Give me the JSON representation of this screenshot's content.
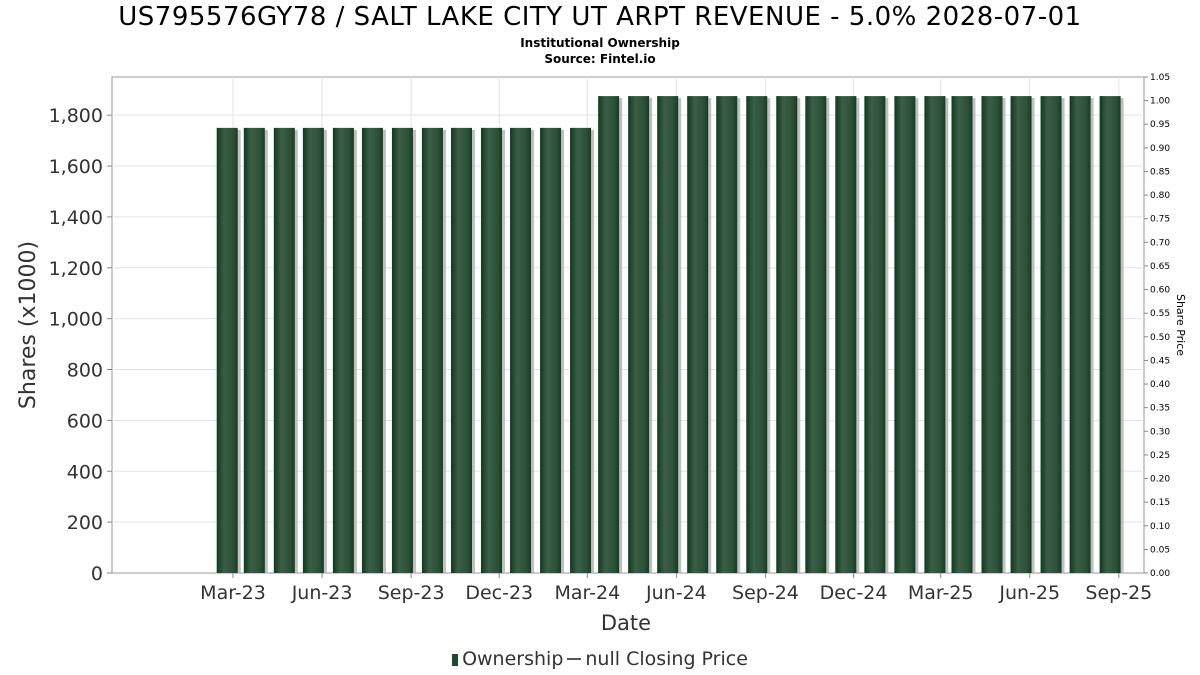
{
  "chart_data": {
    "type": "bar",
    "title": "US795576GY78 / SALT LAKE CITY UT ARPT REVENUE - 5.0% 2028-07-01",
    "subtitle": "Institutional Ownership",
    "source": "Source: Fintel.io",
    "xlabel": "Date",
    "ylabel": "Shares (x1000)",
    "ylabel_right": "Share Price",
    "ylim": [
      0,
      1950
    ],
    "yticks": [
      0,
      200,
      400,
      600,
      800,
      1000,
      1200,
      1400,
      1600,
      1800
    ],
    "ytick_labels": [
      "0",
      "200",
      "400",
      "600",
      "800",
      "1,000",
      "1,200",
      "1,400",
      "1,600",
      "1,800"
    ],
    "y2lim": [
      0,
      1.05
    ],
    "y2ticks": [
      0,
      0.05,
      0.1,
      0.15,
      0.2,
      0.25,
      0.3,
      0.35,
      0.4,
      0.45,
      0.5,
      0.55,
      0.6,
      0.65,
      0.7,
      0.75,
      0.8,
      0.85,
      0.9,
      0.95,
      1.0,
      1.05
    ],
    "y2tick_labels": [
      "0.00",
      "0.05",
      "0.10",
      "0.15",
      "0.20",
      "0.25",
      "0.30",
      "0.35",
      "0.40",
      "0.45",
      "0.50",
      "0.55",
      "0.60",
      "0.65",
      "0.70",
      "0.75",
      "0.80",
      "0.85",
      "0.90",
      "0.95",
      "1.00",
      "1.05"
    ],
    "xticks": [
      "2023-03-01",
      "2023-06-01",
      "2023-09-01",
      "2023-12-01",
      "2024-03-01",
      "2024-06-01",
      "2024-09-01",
      "2024-12-01",
      "2025-03-01",
      "2025-06-01",
      "2025-09-01"
    ],
    "xtick_labels": [
      "Mar-23",
      "Jun-23",
      "Sep-23",
      "Dec-23",
      "Mar-24",
      "Jun-24",
      "Sep-24",
      "Dec-24",
      "Mar-25",
      "Jun-25",
      "Sep-25"
    ],
    "xlim": [
      "2022-10-27",
      "2025-09-27"
    ],
    "grid": true,
    "legend_position": "bottom",
    "series": [
      {
        "name": "Ownership",
        "color": "#1e4a2c",
        "x": [
          "2023-02-23",
          "2023-03-23",
          "2023-04-23",
          "2023-05-23",
          "2023-06-23",
          "2023-07-23",
          "2023-08-23",
          "2023-09-23",
          "2023-10-23",
          "2023-11-23",
          "2023-12-23",
          "2024-01-23",
          "2024-02-23",
          "2024-03-23",
          "2024-04-23",
          "2024-05-23",
          "2024-06-23",
          "2024-07-23",
          "2024-08-23",
          "2024-09-23",
          "2024-10-23",
          "2024-11-23",
          "2024-12-23",
          "2025-01-23",
          "2025-02-23",
          "2025-03-23",
          "2025-04-23",
          "2025-05-23",
          "2025-06-23",
          "2025-07-23",
          "2025-08-23"
        ],
        "values": [
          1750,
          1750,
          1750,
          1750,
          1750,
          1750,
          1750,
          1750,
          1750,
          1750,
          1750,
          1750,
          1750,
          1875,
          1875,
          1875,
          1875,
          1875,
          1875,
          1875,
          1875,
          1875,
          1875,
          1875,
          1875,
          1875,
          1875,
          1875,
          1875,
          1875,
          1875
        ]
      }
    ],
    "legend": [
      {
        "label": "Ownership",
        "marker": "bar"
      },
      {
        "label": "null Closing Price",
        "marker": "line"
      }
    ]
  }
}
